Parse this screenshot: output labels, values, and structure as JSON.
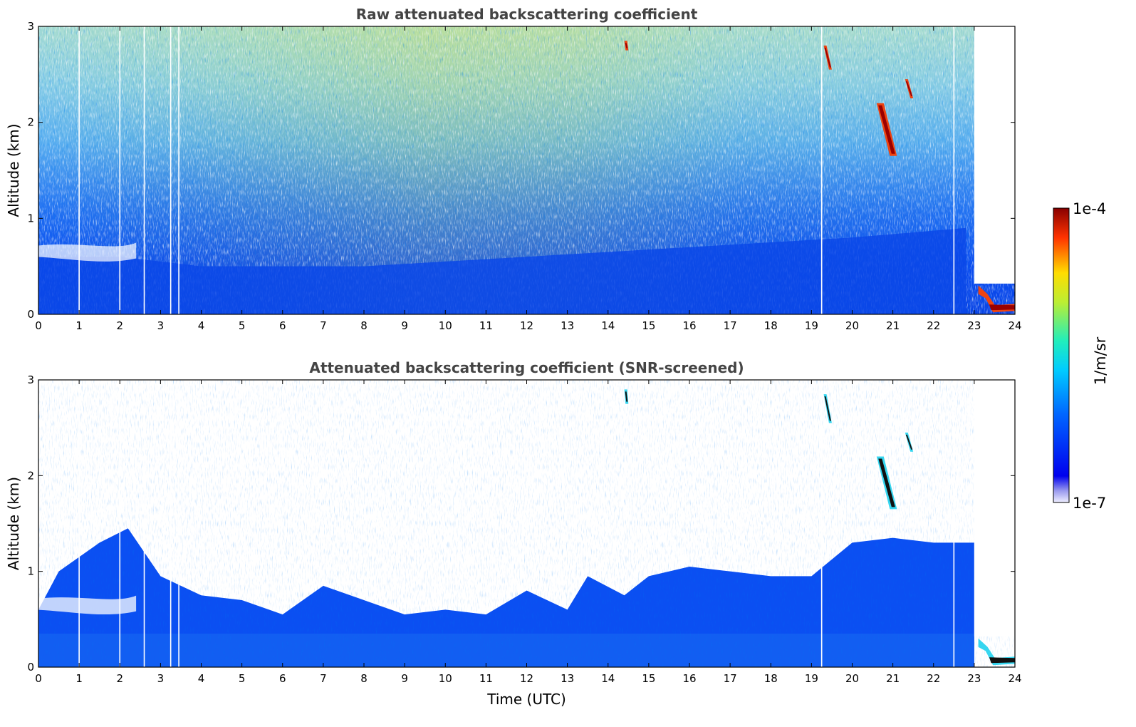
{
  "figure": {
    "colorbar": {
      "max_label": "1e-4",
      "min_label": "1e-7",
      "unit_label": "1/m/sr",
      "colormap": "jet",
      "scale": "log",
      "range": [
        1e-07,
        0.0001
      ]
    }
  },
  "chart_data": [
    {
      "type": "heatmap",
      "title": "Raw attenuated backscattering coefficient",
      "xlabel": "",
      "ylabel": "Altitude (km)",
      "xlim": [
        0,
        24
      ],
      "ylim": [
        0,
        3
      ],
      "x_ticks": [
        "0",
        "1",
        "2",
        "3",
        "4",
        "5",
        "6",
        "7",
        "8",
        "9",
        "10",
        "11",
        "12",
        "13",
        "14",
        "15",
        "16",
        "17",
        "18",
        "19",
        "20",
        "21",
        "22",
        "23",
        "24"
      ],
      "y_ticks": [
        "0",
        "1",
        "2",
        "3"
      ],
      "boundary_layer_top_km": [
        {
          "t": 0,
          "z": 0.6
        },
        {
          "t": 2,
          "z": 0.6
        },
        {
          "t": 4,
          "z": 0.5
        },
        {
          "t": 8,
          "z": 0.5
        },
        {
          "t": 12,
          "z": 0.6
        },
        {
          "t": 16,
          "z": 0.7
        },
        {
          "t": 20,
          "z": 0.8
        },
        {
          "t": 22.8,
          "z": 0.9
        }
      ],
      "aerosol_layer_km": {
        "t_start": 0,
        "t_end": 2.4,
        "z": 0.65
      },
      "cloud_features": [
        {
          "t_start": 14.4,
          "t_end": 14.5,
          "z_top": 2.85,
          "z_bottom": 2.75
        },
        {
          "t_start": 19.3,
          "t_end": 19.5,
          "z_top": 2.8,
          "z_bottom": 2.55
        },
        {
          "t_start": 20.6,
          "t_end": 21.1,
          "z_top": 2.2,
          "z_bottom": 1.65
        },
        {
          "t_start": 21.3,
          "t_end": 21.5,
          "z_top": 2.45,
          "z_bottom": 2.25
        },
        {
          "t_start": 23.1,
          "t_end": 24.0,
          "z_top": 0.3,
          "z_bottom": 0.08
        }
      ],
      "missing_profiles_utc": [
        1.0,
        2.0,
        2.6,
        3.25,
        3.45,
        19.25,
        22.5
      ]
    },
    {
      "type": "heatmap",
      "title": "Attenuated backscattering coefficient (SNR-screened)",
      "xlabel": "Time (UTC)",
      "ylabel": "Altitude (km)",
      "xlim": [
        0,
        24
      ],
      "ylim": [
        0,
        3
      ],
      "x_ticks": [
        "0",
        "1",
        "2",
        "3",
        "4",
        "5",
        "6",
        "7",
        "8",
        "9",
        "10",
        "11",
        "12",
        "13",
        "14",
        "15",
        "16",
        "17",
        "18",
        "19",
        "20",
        "21",
        "22",
        "23",
        "24"
      ],
      "y_ticks": [
        "0",
        "1",
        "2",
        "3"
      ],
      "screened_top_km": [
        {
          "t": 0,
          "z": 0.6
        },
        {
          "t": 0.5,
          "z": 1.0
        },
        {
          "t": 1.5,
          "z": 1.3
        },
        {
          "t": 2.2,
          "z": 1.45
        },
        {
          "t": 3,
          "z": 0.95
        },
        {
          "t": 4,
          "z": 0.75
        },
        {
          "t": 5,
          "z": 0.7
        },
        {
          "t": 6,
          "z": 0.55
        },
        {
          "t": 7,
          "z": 0.85
        },
        {
          "t": 8,
          "z": 0.7
        },
        {
          "t": 9,
          "z": 0.55
        },
        {
          "t": 10,
          "z": 0.6
        },
        {
          "t": 11,
          "z": 0.55
        },
        {
          "t": 12,
          "z": 0.8
        },
        {
          "t": 13,
          "z": 0.6
        },
        {
          "t": 13.5,
          "z": 0.95
        },
        {
          "t": 14.4,
          "z": 0.75
        },
        {
          "t": 15,
          "z": 0.95
        },
        {
          "t": 16,
          "z": 1.05
        },
        {
          "t": 17,
          "z": 1.0
        },
        {
          "t": 18,
          "z": 0.95
        },
        {
          "t": 19,
          "z": 0.95
        },
        {
          "t": 20,
          "z": 1.3
        },
        {
          "t": 21,
          "z": 1.35
        },
        {
          "t": 22,
          "z": 1.3
        },
        {
          "t": 23,
          "z": 1.3
        }
      ],
      "aerosol_layer_km": {
        "t_start": 0,
        "t_end": 2.4,
        "z": 0.65
      },
      "cloud_features": [
        {
          "t_start": 14.4,
          "t_end": 14.5,
          "z_top": 2.9,
          "z_bottom": 2.75
        },
        {
          "t_start": 19.3,
          "t_end": 19.5,
          "z_top": 2.85,
          "z_bottom": 2.55
        },
        {
          "t_start": 20.6,
          "t_end": 21.1,
          "z_top": 2.2,
          "z_bottom": 1.65
        },
        {
          "t_start": 21.3,
          "t_end": 21.5,
          "z_top": 2.45,
          "z_bottom": 2.25
        },
        {
          "t_start": 23.1,
          "t_end": 24.0,
          "z_top": 0.3,
          "z_bottom": 0.08
        }
      ],
      "missing_profiles_utc": [
        1.0,
        2.0,
        2.6,
        3.25,
        3.45,
        19.25,
        22.5
      ]
    }
  ]
}
